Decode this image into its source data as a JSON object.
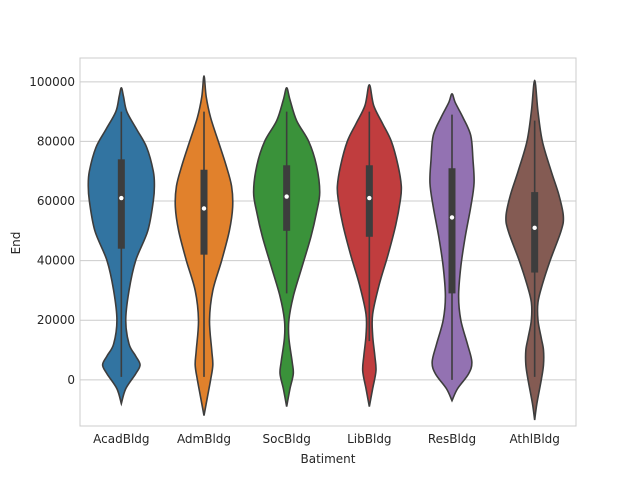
{
  "chart_data": {
    "type": "violin",
    "xlabel": "Batiment",
    "ylabel": "End",
    "ylim": [
      -15500,
      108000
    ],
    "yticks": [
      0,
      20000,
      40000,
      60000,
      80000,
      100000
    ],
    "ytick_labels": [
      "0",
      "20000",
      "40000",
      "60000",
      "80000",
      "100000"
    ],
    "grid": "horizontal",
    "categories": [
      "AcadBldg",
      "AdmBldg",
      "SocBldg",
      "LibBldg",
      "ResBldg",
      "AthlBldg"
    ],
    "series": [
      {
        "category": "AcadBldg",
        "color": "#3274a1",
        "min": -8000,
        "max": 98000,
        "whisker_low": 1000,
        "whisker_high": 90000,
        "q1": 44000,
        "median": 61000,
        "q3": 74000,
        "profile": [
          [
            -8000,
            0
          ],
          [
            -3000,
            4
          ],
          [
            2000,
            13
          ],
          [
            5000,
            17
          ],
          [
            8000,
            13
          ],
          [
            12000,
            7
          ],
          [
            20000,
            4
          ],
          [
            30000,
            7
          ],
          [
            40000,
            13
          ],
          [
            50000,
            24
          ],
          [
            60000,
            29
          ],
          [
            65000,
            30
          ],
          [
            70000,
            29
          ],
          [
            78000,
            23
          ],
          [
            84000,
            14
          ],
          [
            90000,
            5
          ],
          [
            95000,
            2
          ],
          [
            98000,
            0
          ]
        ]
      },
      {
        "category": "AdmBldg",
        "color": "#e1812c",
        "min": -12000,
        "max": 102000,
        "whisker_low": 1000,
        "whisker_high": 90000,
        "q1": 42000,
        "median": 57500,
        "q3": 70500,
        "profile": [
          [
            -12000,
            0
          ],
          [
            -6000,
            3
          ],
          [
            0,
            6
          ],
          [
            5000,
            8
          ],
          [
            10000,
            7
          ],
          [
            20000,
            5
          ],
          [
            30000,
            8
          ],
          [
            40000,
            16
          ],
          [
            50000,
            23
          ],
          [
            58000,
            26
          ],
          [
            65000,
            25
          ],
          [
            72000,
            20
          ],
          [
            80000,
            13
          ],
          [
            88000,
            6
          ],
          [
            95000,
            2
          ],
          [
            102000,
            0
          ]
        ]
      },
      {
        "category": "SocBldg",
        "color": "#3a923a",
        "min": -9000,
        "max": 98000,
        "whisker_low": 29000,
        "whisker_high": 90000,
        "q1": 50000,
        "median": 61500,
        "q3": 72000,
        "profile": [
          [
            -9000,
            0
          ],
          [
            -3000,
            3
          ],
          [
            2000,
            6
          ],
          [
            6000,
            5
          ],
          [
            14000,
            2
          ],
          [
            20000,
            2
          ],
          [
            28000,
            6
          ],
          [
            38000,
            14
          ],
          [
            48000,
            22
          ],
          [
            56000,
            27
          ],
          [
            63000,
            30
          ],
          [
            72000,
            27
          ],
          [
            80000,
            20
          ],
          [
            87000,
            9
          ],
          [
            94000,
            3
          ],
          [
            98000,
            0
          ]
        ]
      },
      {
        "category": "LibBldg",
        "color": "#c03d3e",
        "min": -9000,
        "max": 99000,
        "whisker_low": 13000,
        "whisker_high": 90000,
        "q1": 48000,
        "median": 61000,
        "q3": 72000,
        "profile": [
          [
            -9000,
            0
          ],
          [
            -3000,
            3
          ],
          [
            3000,
            6
          ],
          [
            8000,
            5
          ],
          [
            15000,
            3
          ],
          [
            22000,
            3
          ],
          [
            32000,
            9
          ],
          [
            42000,
            17
          ],
          [
            52000,
            24
          ],
          [
            60000,
            28
          ],
          [
            65000,
            29
          ],
          [
            72000,
            26
          ],
          [
            80000,
            20
          ],
          [
            86000,
            12
          ],
          [
            92000,
            4
          ],
          [
            99000,
            0
          ]
        ]
      },
      {
        "category": "ResBldg",
        "color": "#9372b2",
        "min": -7000,
        "max": 96000,
        "whisker_low": 0,
        "whisker_high": 89000,
        "q1": 29000,
        "median": 54500,
        "q3": 71000,
        "profile": [
          [
            -7000,
            0
          ],
          [
            -3000,
            5
          ],
          [
            2000,
            15
          ],
          [
            6000,
            18
          ],
          [
            12000,
            14
          ],
          [
            20000,
            8
          ],
          [
            28000,
            6
          ],
          [
            38000,
            8
          ],
          [
            48000,
            12
          ],
          [
            58000,
            17
          ],
          [
            66000,
            20
          ],
          [
            74000,
            19
          ],
          [
            82000,
            17
          ],
          [
            88000,
            10
          ],
          [
            93000,
            3
          ],
          [
            96000,
            0
          ]
        ]
      },
      {
        "category": "AthlBldg",
        "color": "#845b53",
        "min": -13500,
        "max": 100500,
        "whisker_low": 1000,
        "whisker_high": 87000,
        "q1": 36000,
        "median": 51000,
        "q3": 63000,
        "profile": [
          [
            -13500,
            0
          ],
          [
            -8000,
            2
          ],
          [
            0,
            6
          ],
          [
            5000,
            8
          ],
          [
            10000,
            8
          ],
          [
            14000,
            6
          ],
          [
            20000,
            3
          ],
          [
            26000,
            3
          ],
          [
            32000,
            7
          ],
          [
            40000,
            14
          ],
          [
            50000,
            24
          ],
          [
            55000,
            26
          ],
          [
            62000,
            22
          ],
          [
            70000,
            15
          ],
          [
            80000,
            7
          ],
          [
            90000,
            3
          ],
          [
            100500,
            0
          ]
        ]
      }
    ]
  }
}
